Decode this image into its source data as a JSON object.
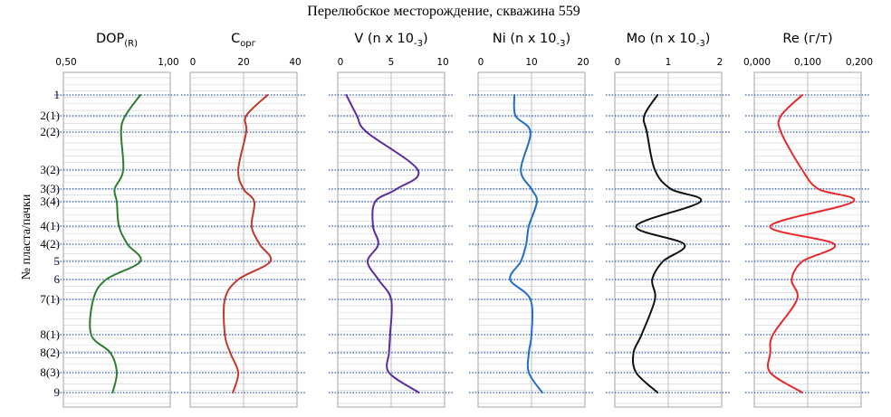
{
  "chart_data": {
    "type": "line",
    "title": "Перелюбское месторождение, скважина 559",
    "ylabel": "№ пласта/пачки",
    "layers": [
      "1",
      "2(1)",
      "2(2)",
      "3(2)",
      "3(3)",
      "3(4)",
      "4(1)",
      "4(2)",
      "5",
      "6",
      "7(1)",
      "8(1)",
      "8(2)",
      "8(3)",
      "9"
    ],
    "depth_index": [
      0,
      1,
      2,
      3,
      4,
      5,
      6,
      7,
      8,
      9,
      10,
      11,
      12,
      13,
      14
    ],
    "grid": true,
    "panels": [
      {
        "name_main": "DOP",
        "name_sub": "(R)",
        "sub_type": "sub",
        "color": "#2e7d32",
        "xlim": [
          0.5,
          1.0
        ],
        "ticks": [
          "0,50",
          "1,00"
        ],
        "values": [
          0.86,
          0.79,
          0.77,
          0.78,
          0.74,
          0.75,
          0.76,
          0.8,
          0.86,
          0.7,
          0.64,
          0.63,
          0.72,
          0.75,
          0.73
        ]
      },
      {
        "name_main": "C",
        "name_sub": "орг",
        "sub_type": "sub",
        "color": "#c0392b",
        "xlim": [
          0,
          40
        ],
        "ticks": [
          "0",
          "20",
          "40"
        ],
        "values": [
          29,
          21,
          21,
          18,
          20,
          24,
          23,
          26,
          30,
          18,
          13,
          13,
          15,
          18,
          16
        ]
      },
      {
        "name_main": "V (n x 10",
        "name_sub": "-3",
        "name_after": ")",
        "sub_type": "sub",
        "color": "#5b2c9e",
        "xlim": [
          0,
          10
        ],
        "ticks": [
          "0",
          "5",
          "10"
        ],
        "values": [
          0.8,
          1.8,
          2.7,
          7.5,
          5.5,
          3.5,
          3.3,
          3.8,
          2.8,
          3.8,
          5.0,
          4.9,
          4.8,
          4.8,
          7.6
        ]
      },
      {
        "name_main": "Ni (n x 10",
        "name_sub": "-3",
        "name_after": ")",
        "sub_type": "sub",
        "color": "#1f6fc5",
        "xlim": [
          0,
          20
        ],
        "ticks": [
          "0",
          "10",
          "20"
        ],
        "values": [
          6.8,
          7.0,
          9.8,
          8.0,
          10.0,
          11.0,
          9.5,
          9.0,
          8.0,
          6.0,
          9.8,
          10.0,
          9.5,
          9.5,
          12.0
        ]
      },
      {
        "name_main": "Mo (n x 10",
        "name_sub": "-3",
        "name_after": ")",
        "sub_type": "sub",
        "color": "#111111",
        "xlim": [
          0,
          2
        ],
        "ticks": [
          "0",
          "1",
          "2"
        ],
        "values": [
          0.8,
          0.55,
          0.6,
          0.75,
          1.05,
          1.6,
          0.4,
          1.3,
          0.9,
          0.7,
          0.75,
          0.5,
          0.35,
          0.4,
          0.8
        ]
      },
      {
        "name_main": "Re (г/т)",
        "name_sub": "",
        "sub_type": "none",
        "color": "#e8282b",
        "xlim": [
          0.0,
          0.2
        ],
        "ticks": [
          "0,000",
          "0,100",
          "0,200"
        ],
        "values": [
          0.09,
          0.05,
          0.05,
          0.09,
          0.12,
          0.185,
          0.03,
          0.15,
          0.09,
          0.07,
          0.08,
          0.035,
          0.03,
          0.03,
          0.09
        ]
      }
    ]
  }
}
